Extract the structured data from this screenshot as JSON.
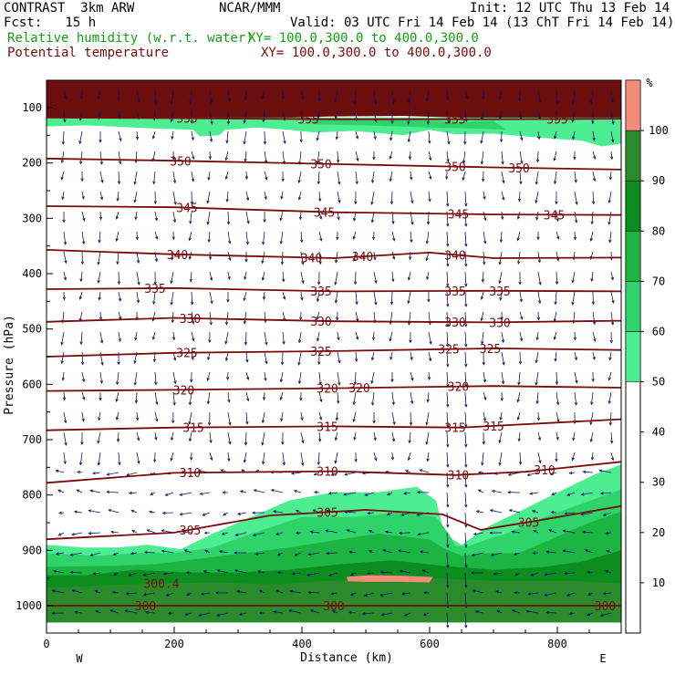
{
  "header": {
    "model": "CONTRAST  3km ARW",
    "org": "NCAR/MMM",
    "init": "Init: 12 UTC Thu 13 Feb 14",
    "fcst": "Fcst:   15 h",
    "valid": "Valid: 03 UTC Fri 14 Feb 14 (13 ChT Fri 14 Feb 14)",
    "field1_name": "Relative humidity (w.r.t. water)",
    "field1_xy": "XY= 100.0,300.0 to 400.0,300.0",
    "field2_name": "Potential temperature",
    "field2_xy": "XY= 100.0,300.0 to 400.0,300.0"
  },
  "colors": {
    "theta": "#7a0a0a",
    "rh": [
      "#4ded92",
      "#2ed36a",
      "#1cb542",
      "#0c8e1e",
      "#2a8b2a",
      "#f58c7a"
    ],
    "wind": "#12126e"
  },
  "chart_data": {
    "type": "cross-section",
    "title": "Relative humidity (w.r.t. water) and Potential temperature",
    "xlabel": "Distance (km)",
    "ylabel": "Pressure (hPa)",
    "xlim": [
      0,
      900
    ],
    "ylim": [
      1030,
      50
    ],
    "x_ticks": [
      "0",
      "200",
      "400",
      "600",
      "800"
    ],
    "x_tick_values": [
      0,
      200,
      400,
      600,
      800
    ],
    "x_ends": [
      "W",
      "E"
    ],
    "y_ticks": [
      "100",
      "200",
      "300",
      "400",
      "500",
      "600",
      "700",
      "800",
      "900",
      "1000"
    ],
    "y_tick_values": [
      100,
      200,
      300,
      400,
      500,
      600,
      700,
      800,
      900,
      1000
    ],
    "colorbar": {
      "unit": "%",
      "levels": [
        50,
        60,
        70,
        80,
        90,
        100
      ],
      "labels": [
        "10",
        "20",
        "30",
        "40",
        "50",
        "60",
        "70",
        "80",
        "90",
        "100"
      ],
      "label_values": [
        10,
        20,
        30,
        40,
        50,
        60,
        70,
        80,
        90,
        100
      ]
    },
    "theta_contours": [
      {
        "label": "355",
        "p": [
          [
            0,
            118
          ],
          [
            200,
            119
          ],
          [
            450,
            121
          ],
          [
            700,
            121
          ],
          [
            900,
            120
          ]
        ],
        "label_x": [
          220,
          410,
          640,
          800
        ]
      },
      {
        "label": "350",
        "p": [
          [
            0,
            192
          ],
          [
            200,
            196
          ],
          [
            450,
            202
          ],
          [
            700,
            208
          ],
          [
            900,
            212
          ]
        ],
        "label_x": [
          210,
          430,
          640,
          740
        ]
      },
      {
        "label": "345",
        "p": [
          [
            0,
            278
          ],
          [
            200,
            280
          ],
          [
            450,
            289
          ],
          [
            700,
            293
          ],
          [
            900,
            294
          ]
        ],
        "label_x": [
          220,
          435,
          645,
          795
        ]
      },
      {
        "label": "340",
        "p": [
          [
            0,
            357
          ],
          [
            200,
            365
          ],
          [
            450,
            372
          ],
          [
            600,
            362
          ],
          [
            700,
            372
          ],
          [
            900,
            371
          ]
        ],
        "label_x": [
          205,
          415,
          495,
          640
        ]
      },
      {
        "label": "335",
        "p": [
          [
            0,
            428
          ],
          [
            200,
            426
          ],
          [
            450,
            432
          ],
          [
            700,
            431
          ],
          [
            900,
            432
          ]
        ],
        "label_x": [
          170,
          430,
          640,
          710
        ]
      },
      {
        "label": "330",
        "p": [
          [
            0,
            487
          ],
          [
            200,
            480
          ],
          [
            450,
            486
          ],
          [
            700,
            488
          ],
          [
            900,
            485
          ]
        ],
        "label_x": [
          225,
          430,
          640,
          710
        ]
      },
      {
        "label": "325",
        "p": [
          [
            0,
            550
          ],
          [
            200,
            543
          ],
          [
            450,
            540
          ],
          [
            700,
            535
          ],
          [
            900,
            538
          ]
        ],
        "label_x": [
          220,
          430,
          630,
          695
        ]
      },
      {
        "label": "320",
        "p": [
          [
            0,
            612
          ],
          [
            200,
            610
          ],
          [
            450,
            607
          ],
          [
            700,
            603
          ],
          [
            900,
            606
          ]
        ],
        "label_x": [
          215,
          440,
          490,
          645
        ]
      },
      {
        "label": "315",
        "p": [
          [
            0,
            683
          ],
          [
            200,
            678
          ],
          [
            450,
            676
          ],
          [
            650,
            678
          ],
          [
            900,
            663
          ]
        ],
        "label_x": [
          230,
          440,
          640,
          700
        ]
      },
      {
        "label": "310",
        "p": [
          [
            0,
            778
          ],
          [
            200,
            760
          ],
          [
            450,
            757
          ],
          [
            640,
            764
          ],
          [
            750,
            758
          ],
          [
            900,
            740
          ]
        ],
        "label_x": [
          225,
          440,
          645,
          780
        ]
      },
      {
        "label": "305",
        "p": [
          [
            0,
            880
          ],
          [
            200,
            868
          ],
          [
            350,
            837
          ],
          [
            500,
            827
          ],
          [
            620,
            835
          ],
          [
            680,
            863
          ],
          [
            760,
            848
          ],
          [
            900,
            820
          ]
        ],
        "label_x": [
          225,
          440,
          755
        ]
      },
      {
        "label": "300",
        "p": [
          [
            0,
            1000
          ],
          [
            900,
            1000
          ]
        ],
        "label_x": [
          155,
          450,
          875
        ]
      }
    ],
    "theta_inline_labels": [
      "300.4"
    ],
    "rh_regions": [
      {
        "level": 50,
        "desc": "upper-tropospheric moist band near 110-160 hPa"
      },
      {
        "level": 50,
        "desc": "low-level moist layer below ~850 hPa"
      },
      {
        "level": 100,
        "desc": "supersaturated patch near 950 hPa, 470-600 km"
      }
    ]
  }
}
